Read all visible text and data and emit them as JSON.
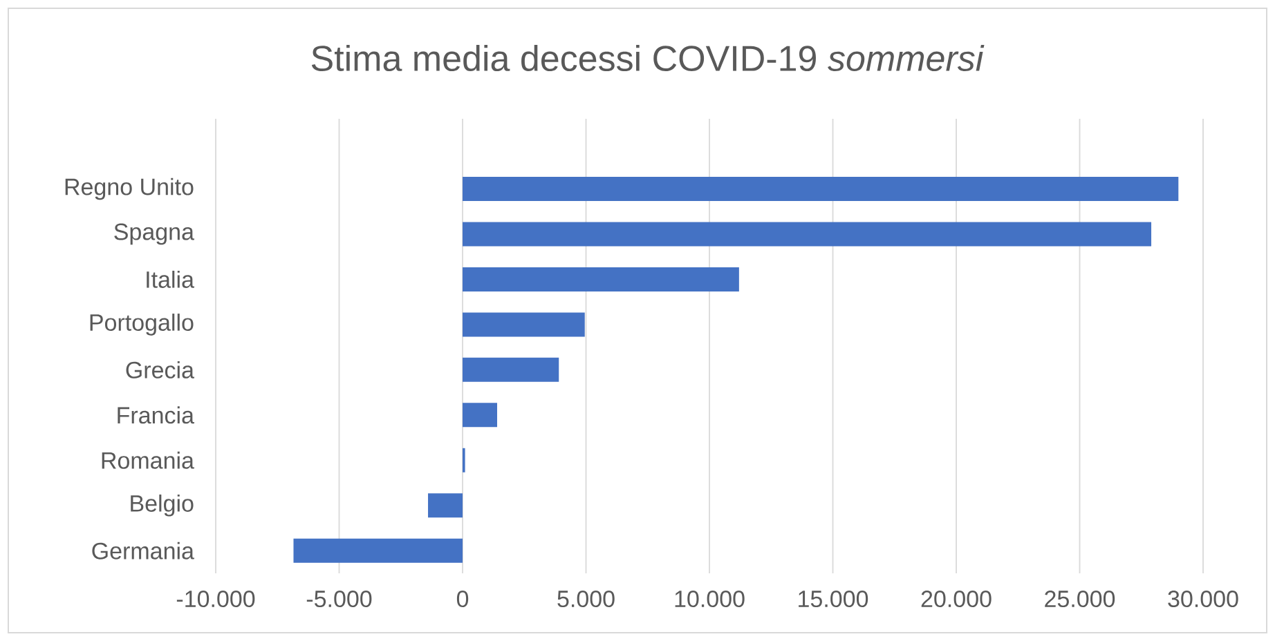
{
  "chart_data": {
    "type": "bar",
    "orientation": "horizontal",
    "title": "Stima media decessi COVID-19 *sommersi*",
    "categories": [
      "Regno Unito",
      "Spagna",
      "Italia",
      "Portogallo",
      "Grecia",
      "Francia",
      "Romania",
      "Belgio",
      "Germania"
    ],
    "values": [
      29000,
      27900,
      11200,
      4950,
      3900,
      1400,
      100,
      -1400,
      -6850
    ],
    "color": "#4472c4",
    "xlim": [
      -10000,
      30000
    ],
    "xticks": [
      {
        "value": -10000,
        "label": "-10.000"
      },
      {
        "value": -5000,
        "label": "-5.000"
      },
      0,
      {
        "value": 5000,
        "label": "5.000"
      },
      {
        "value": 10000,
        "label": "10.000"
      },
      {
        "value": 15000,
        "label": "15.000"
      },
      {
        "value": 20000,
        "label": "20.000"
      },
      {
        "value": 25000,
        "label": "25.000"
      },
      {
        "value": 30000,
        "label": "30.000"
      }
    ],
    "grid": "x"
  }
}
